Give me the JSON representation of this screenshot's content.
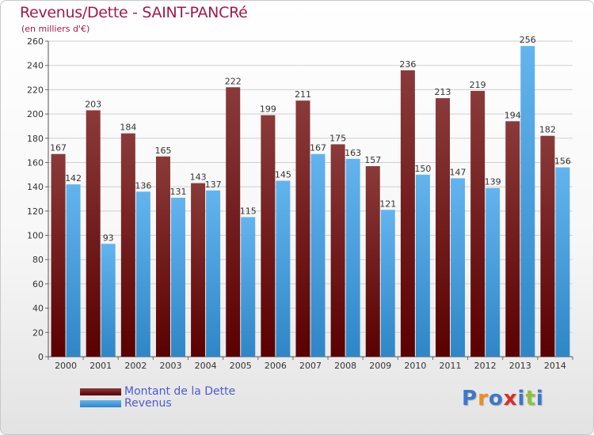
{
  "header": {
    "title": "Revenus/Dette - SAINT-PANCRé",
    "subtitle": "(en milliers d'€)"
  },
  "colors": {
    "dette_dark": "#5a0000",
    "dette_light": "#8a3a3a",
    "revenus_dark": "#2f86c6",
    "revenus_light": "#63b4ee",
    "title": "#a01a4d",
    "legend_text": "#4a5bd6"
  },
  "logo": {
    "text": "Proxiti",
    "letter_colors": [
      "#3c78c8",
      "#f08c1e",
      "#3c78c8",
      "#d8302a",
      "#3c78c8",
      "#8cc23c",
      "#3c78c8"
    ]
  },
  "chart_data": {
    "type": "bar",
    "title": "Revenus/Dette - SAINT-PANCRé",
    "subtitle": "(en milliers d'€)",
    "categories": [
      "2000",
      "2001",
      "2002",
      "2003",
      "2004",
      "2005",
      "2006",
      "2007",
      "2008",
      "2009",
      "2010",
      "2011",
      "2012",
      "2013",
      "2014"
    ],
    "series": [
      {
        "name": "Montant de la Dette",
        "values": [
          167,
          203,
          184,
          165,
          143,
          222,
          199,
          211,
          175,
          157,
          236,
          213,
          219,
          194,
          182
        ]
      },
      {
        "name": "Revenus",
        "values": [
          142,
          93,
          136,
          131,
          137,
          115,
          145,
          167,
          163,
          121,
          150,
          147,
          139,
          256,
          156
        ]
      }
    ],
    "ylim": [
      0,
      260
    ],
    "yticks": [
      0,
      20,
      40,
      60,
      80,
      100,
      120,
      140,
      160,
      180,
      200,
      220,
      240,
      260
    ],
    "grid": true,
    "legend": "bottom-left"
  }
}
